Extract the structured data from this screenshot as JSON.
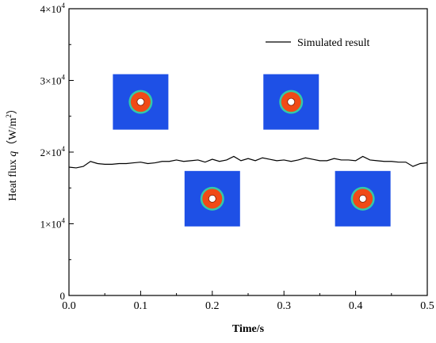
{
  "chart_data": {
    "type": "line",
    "xlabel": "Time/s",
    "ylabel": {
      "prefix": "Heat flux ",
      "symbol": "q",
      "unit_open": "（W/m",
      "unit_exp": "2",
      "unit_close": "）"
    },
    "xlim": [
      0,
      0.5
    ],
    "ylim": [
      0,
      40000
    ],
    "x_ticks": [
      {
        "value": 0.0,
        "label": "0.0"
      },
      {
        "value": 0.1,
        "label": "0.1"
      },
      {
        "value": 0.2,
        "label": "0.2"
      },
      {
        "value": 0.3,
        "label": "0.3"
      },
      {
        "value": 0.4,
        "label": "0.4"
      },
      {
        "value": 0.5,
        "label": "0.5"
      }
    ],
    "y_ticks": [
      {
        "value": 0,
        "label": "0",
        "mantissa": "",
        "exponent": ""
      },
      {
        "value": 10000,
        "label": "",
        "mantissa": "1×10",
        "exponent": "4"
      },
      {
        "value": 20000,
        "label": "",
        "mantissa": "2×10",
        "exponent": "4"
      },
      {
        "value": 30000,
        "label": "",
        "mantissa": "3×10",
        "exponent": "4"
      },
      {
        "value": 40000,
        "label": "",
        "mantissa": "4×10",
        "exponent": "4"
      }
    ],
    "legend_position": "top-right",
    "grid": false,
    "series": [
      {
        "name": "Simulated result",
        "color": "#000000",
        "x": [
          0,
          0.01,
          0.02,
          0.03,
          0.04,
          0.05,
          0.06,
          0.07,
          0.08,
          0.09,
          0.1,
          0.11,
          0.12,
          0.13,
          0.14,
          0.15,
          0.16,
          0.17,
          0.18,
          0.19,
          0.2,
          0.21,
          0.22,
          0.23,
          0.24,
          0.25,
          0.26,
          0.27,
          0.28,
          0.29,
          0.3,
          0.31,
          0.32,
          0.33,
          0.34,
          0.35,
          0.36,
          0.37,
          0.38,
          0.39,
          0.4,
          0.41,
          0.42,
          0.43,
          0.44,
          0.45,
          0.46,
          0.47,
          0.48,
          0.49,
          0.5
        ],
        "y": [
          17900,
          17800,
          18000,
          18700,
          18400,
          18300,
          18300,
          18400,
          18400,
          18500,
          18600,
          18400,
          18500,
          18700,
          18700,
          18900,
          18700,
          18800,
          18900,
          18600,
          19000,
          18700,
          18900,
          19400,
          18800,
          19100,
          18800,
          19200,
          19000,
          18800,
          18900,
          18700,
          18900,
          19200,
          19000,
          18800,
          18800,
          19100,
          18900,
          18900,
          18800,
          19400,
          18900,
          18800,
          18700,
          18700,
          18600,
          18600,
          18000,
          18400,
          18500
        ]
      }
    ],
    "insets": [
      {
        "x": 0.1,
        "y": 27000,
        "outer_color": "#1e50e6",
        "ring_color": "#33c9a8",
        "disk_color": "#f04a16",
        "core_color": "#ffffff"
      },
      {
        "x": 0.2,
        "y": 13500,
        "outer_color": "#1e50e6",
        "ring_color": "#33c9a8",
        "disk_color": "#f04a16",
        "core_color": "#ffffff"
      },
      {
        "x": 0.31,
        "y": 27000,
        "outer_color": "#1e50e6",
        "ring_color": "#33c9a8",
        "disk_color": "#f04a16",
        "core_color": "#ffffff"
      },
      {
        "x": 0.41,
        "y": 13500,
        "outer_color": "#1e50e6",
        "ring_color": "#33c9a8",
        "disk_color": "#f04a16",
        "core_color": "#ffffff"
      }
    ]
  }
}
